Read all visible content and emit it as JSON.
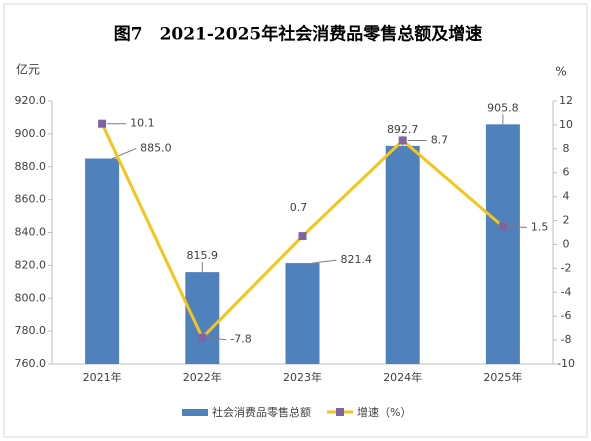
{
  "chart_data": {
    "type": "combo",
    "title": "图7　2021-2025年社会消费品零售总额及增速",
    "y_unit": "亿元",
    "y2_unit": "%",
    "categories": [
      "2021年",
      "2022年",
      "2023年",
      "2024年",
      "2025年"
    ],
    "series": [
      {
        "name": "社会消费品零售总额",
        "type": "bar",
        "color": "#4f81bd",
        "values": [
          885.0,
          815.9,
          821.4,
          892.7,
          905.8
        ],
        "value_labels": [
          "885.0",
          "815.9",
          "821.4",
          "892.7",
          "905.8"
        ]
      },
      {
        "name": "增速（%）",
        "type": "line",
        "axis": "y2",
        "color": "#f5c518",
        "marker_color": "#8064a2",
        "values": [
          10.1,
          -7.8,
          0.7,
          8.7,
          1.5
        ]
      }
    ],
    "ylim": [
      760,
      920
    ],
    "yticks": [
      {
        "value": 760,
        "label": "760.0"
      },
      {
        "value": 780,
        "label": "780.0"
      },
      {
        "value": 800,
        "label": "800.0"
      },
      {
        "value": 820,
        "label": "820.0"
      },
      {
        "value": 840,
        "label": "840.0"
      },
      {
        "value": 860,
        "label": "860.0"
      },
      {
        "value": 880,
        "label": "880.0"
      },
      {
        "value": 900,
        "label": "900.0"
      },
      {
        "value": 920,
        "label": "920.0"
      }
    ],
    "y2lim": [
      -10,
      12
    ],
    "y2ticks": [
      -10,
      -8,
      -6,
      -4,
      -2,
      0,
      2,
      4,
      6,
      8,
      10,
      12
    ],
    "grid": false
  }
}
